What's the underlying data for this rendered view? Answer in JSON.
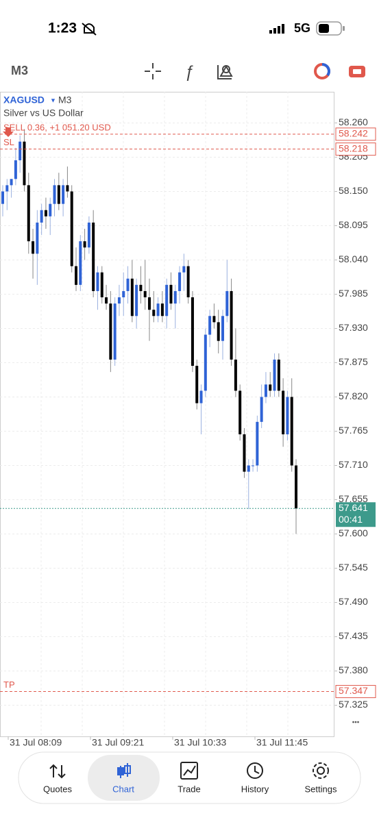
{
  "status_bar": {
    "time": "1:23",
    "network": "5G"
  },
  "toolbar": {
    "timeframe": "M3"
  },
  "chart_data": {
    "type": "candlestick",
    "symbol": "XAGUSD",
    "timeframe": "M3",
    "description": "Silver vs US Dollar",
    "up_color": "#2f63d6",
    "down_color": "#000000",
    "open": [
      58.13,
      58.15,
      58.16,
      58.17,
      58.2,
      58.23,
      58.16,
      58.07,
      58.05,
      58.1,
      58.12,
      58.11,
      58.13,
      58.16,
      58.13,
      58.16,
      58.15,
      58.03,
      58.0,
      58.07,
      58.06,
      58.1,
      57.99,
      58.02,
      57.98,
      57.97,
      57.88,
      57.97,
      57.98,
      57.99,
      58.01,
      57.95,
      58.0,
      57.99,
      57.98,
      57.96,
      57.95,
      57.97,
      57.95,
      58.0,
      57.97,
      57.99,
      58.02,
      58.03,
      57.98,
      57.87,
      57.81,
      57.83,
      57.92,
      57.95,
      57.94,
      57.91,
      57.95,
      57.99,
      57.88,
      57.83,
      57.76,
      57.7,
      57.71,
      57.71,
      57.78,
      57.82,
      57.84,
      57.83,
      57.88,
      57.83,
      57.76,
      57.82,
      57.71
    ],
    "high": [
      58.16,
      58.17,
      58.17,
      58.22,
      58.24,
      58.25,
      58.18,
      58.09,
      58.12,
      58.13,
      58.14,
      58.14,
      58.17,
      58.18,
      58.17,
      58.19,
      58.16,
      58.06,
      58.08,
      58.09,
      58.11,
      58.12,
      58.03,
      58.03,
      58.0,
      57.99,
      57.98,
      58.0,
      58.02,
      58.03,
      58.04,
      58.01,
      58.03,
      58.04,
      58.01,
      57.99,
      57.98,
      57.99,
      58.01,
      58.02,
      58.0,
      58.03,
      58.05,
      58.04,
      57.99,
      57.88,
      57.84,
      57.93,
      57.96,
      57.97,
      57.96,
      57.96,
      58.04,
      58.01,
      57.93,
      57.84,
      57.77,
      57.72,
      57.72,
      57.79,
      57.84,
      57.86,
      57.86,
      57.89,
      57.89,
      57.85,
      57.83,
      57.85,
      57.72
    ],
    "low": [
      58.11,
      58.12,
      58.14,
      58.16,
      58.18,
      58.15,
      58.05,
      58.01,
      58.0,
      58.08,
      58.09,
      58.08,
      58.11,
      58.12,
      58.11,
      58.14,
      58.02,
      57.99,
      57.99,
      58.04,
      58.05,
      57.98,
      57.96,
      57.97,
      57.96,
      57.86,
      57.87,
      57.95,
      57.95,
      57.97,
      57.94,
      57.93,
      57.97,
      57.96,
      57.91,
      57.94,
      57.94,
      57.94,
      57.93,
      57.96,
      57.93,
      57.97,
      57.99,
      57.97,
      57.86,
      57.8,
      57.76,
      57.82,
      57.9,
      57.93,
      57.89,
      57.88,
      57.94,
      57.87,
      57.82,
      57.75,
      57.69,
      57.64,
      57.7,
      57.7,
      57.77,
      57.81,
      57.82,
      57.82,
      57.82,
      57.74,
      57.75,
      57.7,
      57.6
    ],
    "close": [
      58.15,
      58.16,
      58.17,
      58.2,
      58.23,
      58.16,
      58.07,
      58.05,
      58.1,
      58.12,
      58.11,
      58.13,
      58.16,
      58.13,
      58.16,
      58.15,
      58.03,
      58.0,
      58.07,
      58.06,
      58.1,
      57.99,
      58.02,
      57.98,
      57.97,
      57.88,
      57.97,
      57.98,
      57.99,
      58.01,
      57.95,
      58.0,
      57.99,
      57.98,
      57.96,
      57.95,
      57.97,
      57.95,
      58.0,
      57.97,
      57.99,
      58.02,
      58.03,
      57.98,
      57.87,
      57.81,
      57.83,
      57.92,
      57.95,
      57.94,
      57.91,
      57.95,
      57.99,
      57.88,
      57.83,
      57.76,
      57.7,
      57.71,
      57.71,
      57.78,
      57.82,
      57.84,
      57.83,
      57.88,
      57.83,
      57.76,
      57.82,
      57.71,
      57.641
    ],
    "ylim": [
      57.275,
      58.31
    ],
    "yticks": [
      {
        "value": 58.26,
        "label": "58.260"
      },
      58.205,
      {
        "value": 58.15,
        "label": "58.150"
      },
      58.095,
      {
        "value": 58.04,
        "label": "58.040"
      },
      57.985,
      {
        "value": 57.93,
        "label": "57.930"
      },
      57.875,
      {
        "value": 57.82,
        "label": "57.820"
      },
      57.765,
      {
        "value": 57.71,
        "label": "57.710"
      },
      57.655,
      {
        "value": 57.6,
        "label": "57.600"
      },
      57.545,
      {
        "value": 57.49,
        "label": "57.490"
      },
      57.435,
      {
        "value": 57.38,
        "label": "57.380"
      },
      57.325
    ],
    "xtick_labels": [
      "31 Jul 08:09",
      "31 Jul 09:21",
      "31 Jul 10:33",
      "31 Jul 11:45"
    ],
    "grid": true,
    "levels": [
      {
        "name": "SELL 0.36, +1 051.20 USD",
        "value": 58.242,
        "color": "#e0584c"
      },
      {
        "name": "SL",
        "value": 58.218,
        "color": "#e0584c"
      },
      {
        "name": "TP",
        "value": 57.347,
        "color": "#e0584c"
      }
    ],
    "last_price": 57.641,
    "last_price_color": "#3d9a8b",
    "countdown": "00:41"
  },
  "nav": {
    "items": [
      "Quotes",
      "Chart",
      "Trade",
      "History",
      "Settings"
    ],
    "active": 1
  }
}
